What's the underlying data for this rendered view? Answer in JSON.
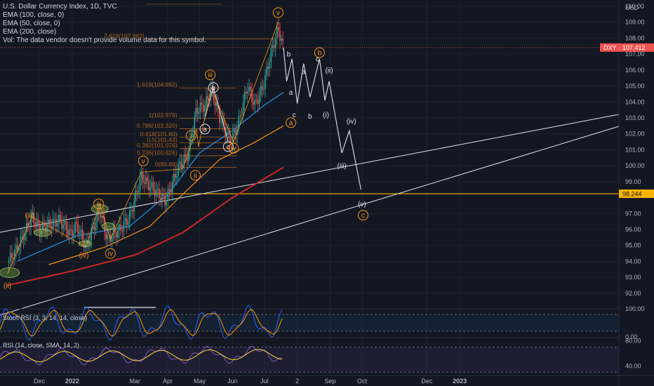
{
  "legend": {
    "title": "U.S. Dollar Currency Index, 1D, TVC",
    "ema100": "EMA (100, close, 0)",
    "ema50": "EMA (50, close, 0)",
    "ema200": "EMA (200, close)",
    "volume_note": "Vol: The data vendor doesn't provide volume data for this symbol."
  },
  "symbol_badge": "DXY",
  "price_badge": "107.412",
  "level_badge": "98.244",
  "currency_label": "USD",
  "colors": {
    "background": "#131722",
    "candle_up": "#26a69a",
    "candle_down": "#ef5350",
    "ema50": "#2196f3",
    "ema100": "#f7931a",
    "ema200": "#c62828",
    "fib": "#b0641c",
    "wave_labels": "#f7931a",
    "projection": "#e0e3eb",
    "level_line": "#f7b500"
  },
  "chart_data": {
    "type": "candlestick",
    "title": "U.S. Dollar Currency Index, 1D, TVC",
    "y_unit": "USD",
    "y_range": [
      91.7,
      111.1
    ],
    "y_ticks": [
      "110.00",
      "109.00",
      "108.00",
      "107.00",
      "106.00",
      "105.00",
      "104.00",
      "103.00",
      "102.00",
      "101.00",
      "100.00",
      "99.00",
      "97.00",
      "96.00",
      "95.00",
      "94.00",
      "93.00",
      "92.00"
    ],
    "x_ticks": [
      "Dec",
      "2022",
      "Mar",
      "Apr",
      "May",
      "Jun",
      "Jul",
      "2",
      "Sep",
      "Oct",
      "Dec",
      "2023"
    ],
    "price_path": [
      {
        "d": "2021-11-01",
        "v": 93.9
      },
      {
        "d": "2021-11-10",
        "v": 94.8
      },
      {
        "d": "2021-11-20",
        "v": 96.2
      },
      {
        "d": "2021-11-24",
        "v": 96.8
      },
      {
        "d": "2021-12-01",
        "v": 96.0
      },
      {
        "d": "2021-12-10",
        "v": 96.3
      },
      {
        "d": "2021-12-20",
        "v": 96.6
      },
      {
        "d": "2021-12-31",
        "v": 95.7
      },
      {
        "d": "2022-01-05",
        "v": 96.3
      },
      {
        "d": "2022-01-14",
        "v": 94.9
      },
      {
        "d": "2022-01-27",
        "v": 97.2
      },
      {
        "d": "2022-02-03",
        "v": 95.4
      },
      {
        "d": "2022-02-15",
        "v": 96.0
      },
      {
        "d": "2022-02-24",
        "v": 96.8
      },
      {
        "d": "2022-03-07",
        "v": 99.3
      },
      {
        "d": "2022-03-14",
        "v": 98.8
      },
      {
        "d": "2022-03-30",
        "v": 97.8
      },
      {
        "d": "2022-04-11",
        "v": 99.9
      },
      {
        "d": "2022-04-20",
        "v": 100.7
      },
      {
        "d": "2022-04-28",
        "v": 103.5
      },
      {
        "d": "2022-05-06",
        "v": 103.8
      },
      {
        "d": "2022-05-12",
        "v": 104.8
      },
      {
        "d": "2022-05-20",
        "v": 103.0
      },
      {
        "d": "2022-05-30",
        "v": 101.5
      },
      {
        "d": "2022-06-06",
        "v": 102.5
      },
      {
        "d": "2022-06-15",
        "v": 105.0
      },
      {
        "d": "2022-06-22",
        "v": 103.8
      },
      {
        "d": "2022-06-30",
        "v": 105.0
      },
      {
        "d": "2022-07-07",
        "v": 107.0
      },
      {
        "d": "2022-07-14",
        "v": 108.6
      },
      {
        "d": "2022-07-19",
        "v": 107.4
      }
    ],
    "ema50": [
      {
        "d": "2021-11-10",
        "v": 94.0
      },
      {
        "d": "2022-01-05",
        "v": 95.6
      },
      {
        "d": "2022-02-24",
        "v": 96.2
      },
      {
        "d": "2022-04-01",
        "v": 98.2
      },
      {
        "d": "2022-05-01",
        "v": 100.8
      },
      {
        "d": "2022-06-01",
        "v": 102.2
      },
      {
        "d": "2022-07-01",
        "v": 103.8
      },
      {
        "d": "2022-07-19",
        "v": 104.6
      }
    ],
    "ema100": [
      {
        "d": "2021-12-10",
        "v": 93.8
      },
      {
        "d": "2022-02-01",
        "v": 94.9
      },
      {
        "d": "2022-03-15",
        "v": 96.2
      },
      {
        "d": "2022-04-15",
        "v": 98.2
      },
      {
        "d": "2022-05-20",
        "v": 100.4
      },
      {
        "d": "2022-06-20",
        "v": 101.4
      },
      {
        "d": "2022-07-19",
        "v": 102.5
      }
    ],
    "ema200": [
      {
        "d": "2021-11-01",
        "v": 92.5
      },
      {
        "d": "2022-01-01",
        "v": 93.4
      },
      {
        "d": "2022-03-01",
        "v": 94.4
      },
      {
        "d": "2022-04-15",
        "v": 95.8
      },
      {
        "d": "2022-06-01",
        "v": 98.0
      },
      {
        "d": "2022-07-19",
        "v": 99.9
      }
    ],
    "fib_levels": [
      {
        "label": "2.618(107.962)",
        "v": 107.962
      },
      {
        "label": "1.618(104.882)",
        "v": 104.882
      },
      {
        "label": "1(102.979)",
        "v": 102.979
      },
      {
        "label": "0.786(102.320)",
        "v": 102.32
      },
      {
        "label": "0.618(101.80)",
        "v": 101.8
      },
      {
        "label": "0.5(101.43)",
        "v": 101.43
      },
      {
        "label": "0.382(101.076)",
        "v": 101.076
      },
      {
        "label": "0.236(100.626)",
        "v": 100.626
      },
      {
        "label": "0(99.89)",
        "v": 99.89
      }
    ],
    "projection_path": [
      {
        "d": "2022-07-19",
        "v": 107.4
      },
      {
        "d": "2022-07-22",
        "v": 105.3
      },
      {
        "d": "2022-07-27",
        "v": 106.7
      },
      {
        "d": "2022-08-01",
        "v": 103.9
      },
      {
        "d": "2022-08-07",
        "v": 106.4
      },
      {
        "d": "2022-08-13",
        "v": 104.3
      },
      {
        "d": "2022-08-22",
        "v": 106.7
      },
      {
        "d": "2022-08-27",
        "v": 104.1
      },
      {
        "d": "2022-08-31",
        "v": 105.3
      },
      {
        "d": "2022-09-12",
        "v": 100.8
      },
      {
        "d": "2022-09-19",
        "v": 102.2
      },
      {
        "d": "2022-09-30",
        "v": 98.5
      }
    ],
    "wave_labels": [
      {
        "t": "v",
        "d": "2022-07-14",
        "v": 109.6,
        "style": "orange-circle"
      },
      {
        "t": "iii",
        "d": "2022-05-11",
        "v": 105.7,
        "style": "orange-circle"
      },
      {
        "t": "b",
        "d": "2022-05-14",
        "v": 104.9,
        "style": "white-circle"
      },
      {
        "t": "a",
        "d": "2022-05-06",
        "v": 102.3,
        "style": "white-circle"
      },
      {
        "t": "c",
        "d": "2022-05-28",
        "v": 101.2,
        "style": "white-circle"
      },
      {
        "t": "iv",
        "d": "2022-06-02",
        "v": 101.1,
        "style": "orange-circle"
      },
      {
        "t": "i",
        "d": "2022-04-23",
        "v": 101.9,
        "style": "orange-circle"
      },
      {
        "t": "ii",
        "d": "2022-04-27",
        "v": 99.4,
        "style": "orange-circle"
      },
      {
        "t": "v",
        "d": "2022-03-09",
        "v": 100.3,
        "style": "orange-circle"
      },
      {
        "t": "iii",
        "d": "2022-01-26",
        "v": 97.6,
        "style": "orange-circle"
      },
      {
        "t": "iv",
        "d": "2022-02-06",
        "v": 94.5,
        "style": "orange-circle"
      },
      {
        "t": "(iii)",
        "d": "2021-11-22",
        "v": 96.9,
        "style": "orange-text"
      },
      {
        "t": "(iv)",
        "d": "2022-01-12",
        "v": 94.4,
        "style": "orange-text"
      },
      {
        "t": "(ii)",
        "d": "2021-11-01",
        "v": 92.5,
        "style": "orange-text"
      },
      {
        "t": "b",
        "d": "2022-07-24",
        "v": 107.0,
        "style": "white-text"
      },
      {
        "t": "a",
        "d": "2022-08-07",
        "v": 105.9,
        "style": "white-text"
      },
      {
        "t": "a",
        "d": "2022-07-26",
        "v": 104.6,
        "style": "white-text"
      },
      {
        "t": "c",
        "d": "2022-07-29",
        "v": 103.2,
        "style": "white-text"
      },
      {
        "t": "a",
        "d": "2022-07-26",
        "v": 102.7,
        "style": "orange-circle"
      },
      {
        "t": "b",
        "d": "2022-08-13",
        "v": 103.1,
        "style": "white-text"
      },
      {
        "t": "c",
        "d": "2022-08-20",
        "v": 106.7,
        "style": "white-text"
      },
      {
        "t": "b",
        "d": "2022-08-22",
        "v": 107.1,
        "style": "orange-circle"
      },
      {
        "t": "(ii)",
        "d": "2022-08-31",
        "v": 106.0,
        "style": "white-text"
      },
      {
        "t": "(i)",
        "d": "2022-08-28",
        "v": 103.2,
        "style": "white-text"
      },
      {
        "t": "(iv)",
        "d": "2022-09-21",
        "v": 102.8,
        "style": "white-text"
      },
      {
        "t": "(iii)",
        "d": "2022-09-12",
        "v": 100.0,
        "style": "white-text"
      },
      {
        "t": "(v)",
        "d": "2022-10-01",
        "v": 97.6,
        "style": "white-text"
      },
      {
        "t": "c",
        "d": "2022-10-02",
        "v": 96.9,
        "style": "orange-circle"
      }
    ],
    "horizontal_level": 98.244,
    "stoch_rsi": {
      "label": "Stoch RSI (3, 3, 14, 14, close)",
      "ticks": [
        "100.00",
        "0.00"
      ],
      "range": [
        0,
        100
      ],
      "bands": [
        80,
        20
      ]
    },
    "rsi": {
      "label": "RSI (14, close, SMA, 14, 2)",
      "ticks": [
        "80.00",
        "40.00"
      ],
      "range": [
        25,
        85
      ],
      "bands": [
        70,
        30
      ]
    }
  }
}
